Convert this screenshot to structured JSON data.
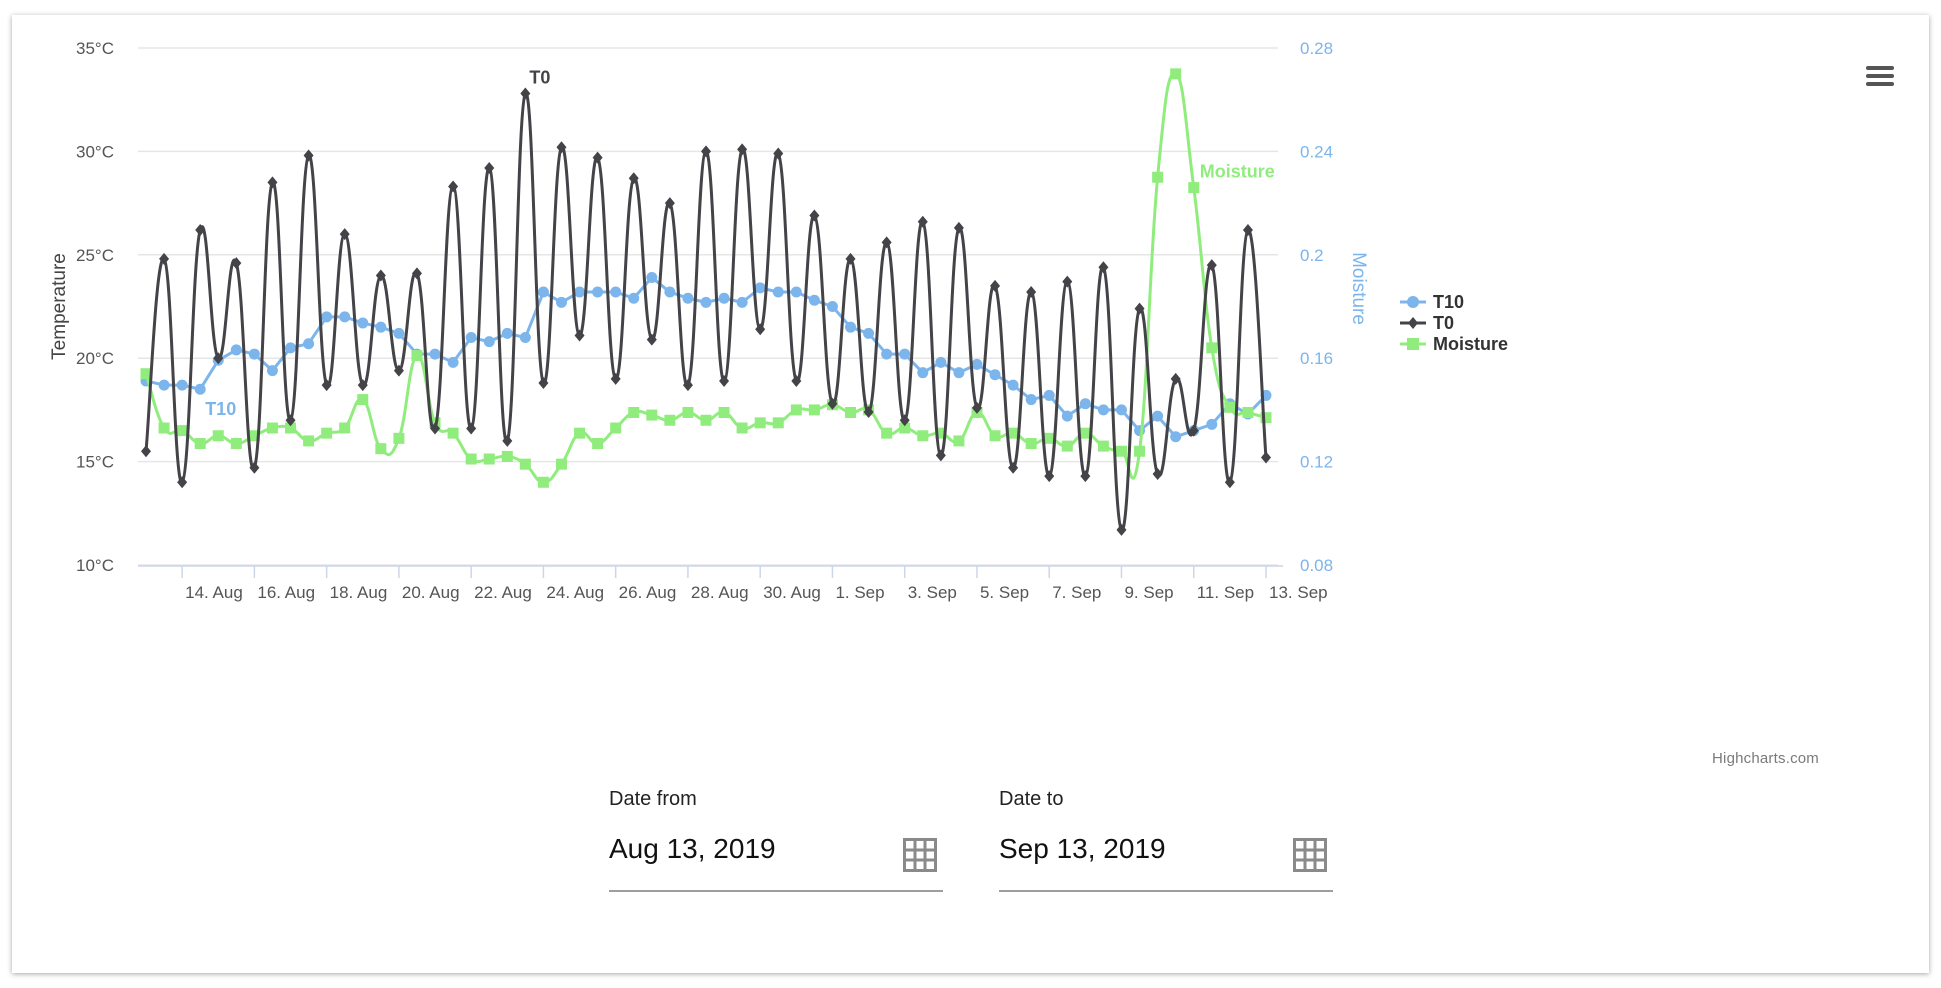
{
  "menu": {
    "icon": "hamburger-menu-icon"
  },
  "credits": "Highcharts.com",
  "date_from": {
    "label": "Date from",
    "value": "Aug 13, 2019",
    "icon": "calendar-grid-icon"
  },
  "date_to": {
    "label": "Date to",
    "value": "Sep 13, 2019",
    "icon": "calendar-grid-icon"
  },
  "chart_data": {
    "type": "line",
    "x_start": "2019-08-13",
    "x_step_hours": 12,
    "x_tick_labels": [
      "14. Aug",
      "16. Aug",
      "18. Aug",
      "20. Aug",
      "22. Aug",
      "24. Aug",
      "26. Aug",
      "28. Aug",
      "30. Aug",
      "1. Sep",
      "3. Sep",
      "5. Sep",
      "7. Sep",
      "9. Sep",
      "11. Sep",
      "13. Sep"
    ],
    "y_left": {
      "title": "Temperature",
      "ticks": [
        "10°C",
        "15°C",
        "20°C",
        "25°C",
        "30°C",
        "35°C"
      ],
      "min": 10,
      "max": 35
    },
    "y_right": {
      "title": "Moisture",
      "ticks": [
        "0.08",
        "0.12",
        "0.16",
        "0.2",
        "0.24",
        "0.28"
      ],
      "min": 0.08,
      "max": 0.28
    },
    "grid": true,
    "legend": "right",
    "series": [
      {
        "name": "T10",
        "axis": "left",
        "color": "#7cb5ec",
        "marker": "circle",
        "label": "T10",
        "values": [
          18.9,
          18.7,
          18.7,
          18.5,
          19.9,
          20.4,
          20.2,
          19.4,
          20.5,
          20.7,
          22.0,
          22.0,
          21.7,
          21.5,
          21.2,
          20.2,
          20.2,
          19.8,
          21.0,
          20.8,
          21.2,
          21.0,
          23.2,
          22.7,
          23.2,
          23.2,
          23.2,
          22.9,
          23.9,
          23.2,
          22.9,
          22.7,
          22.9,
          22.7,
          23.4,
          23.2,
          23.2,
          22.8,
          22.5,
          21.5,
          21.2,
          20.2,
          20.2,
          19.3,
          19.8,
          19.3,
          19.7,
          19.2,
          18.7,
          18.0,
          18.2,
          17.2,
          17.8,
          17.5,
          17.5,
          16.5,
          17.2,
          16.2,
          16.5,
          16.8,
          17.8,
          17.3,
          18.2
        ]
      },
      {
        "name": "T0",
        "axis": "left",
        "color": "#434348",
        "marker": "diamond",
        "label": "T0",
        "values": [
          15.5,
          24.8,
          14.0,
          26.2,
          20.0,
          24.6,
          14.7,
          28.5,
          17.0,
          29.8,
          18.7,
          26.0,
          18.7,
          24.0,
          19.4,
          24.1,
          16.6,
          28.3,
          16.6,
          29.2,
          16.0,
          32.8,
          18.8,
          30.2,
          21.1,
          29.7,
          19.0,
          28.7,
          20.9,
          27.5,
          18.7,
          30.0,
          18.9,
          30.1,
          21.4,
          29.9,
          18.9,
          26.9,
          17.8,
          24.8,
          17.4,
          25.6,
          17.0,
          26.6,
          15.3,
          26.3,
          17.6,
          23.5,
          14.7,
          23.2,
          14.3,
          23.7,
          14.3,
          24.4,
          11.7,
          22.4,
          14.4,
          19.0,
          16.5,
          24.5,
          14.0,
          26.2,
          15.2
        ]
      },
      {
        "name": "Moisture",
        "axis": "right",
        "color": "#90ed7d",
        "marker": "square",
        "label": "Moisture",
        "values": [
          0.154,
          0.133,
          0.132,
          0.127,
          0.13,
          0.127,
          0.13,
          0.133,
          0.133,
          0.128,
          0.131,
          0.133,
          0.144,
          0.125,
          0.129,
          0.161,
          0.135,
          0.131,
          0.121,
          0.121,
          0.122,
          0.119,
          0.112,
          0.119,
          0.131,
          0.127,
          0.133,
          0.139,
          0.138,
          0.136,
          0.139,
          0.136,
          0.139,
          0.133,
          0.135,
          0.135,
          0.14,
          0.14,
          0.142,
          0.139,
          0.14,
          0.131,
          0.133,
          0.13,
          0.131,
          0.128,
          0.139,
          0.13,
          0.131,
          0.127,
          0.129,
          0.126,
          0.131,
          0.126,
          0.124,
          0.124,
          0.23,
          0.27,
          0.226,
          0.164,
          0.141,
          0.139,
          0.137
        ]
      }
    ]
  }
}
